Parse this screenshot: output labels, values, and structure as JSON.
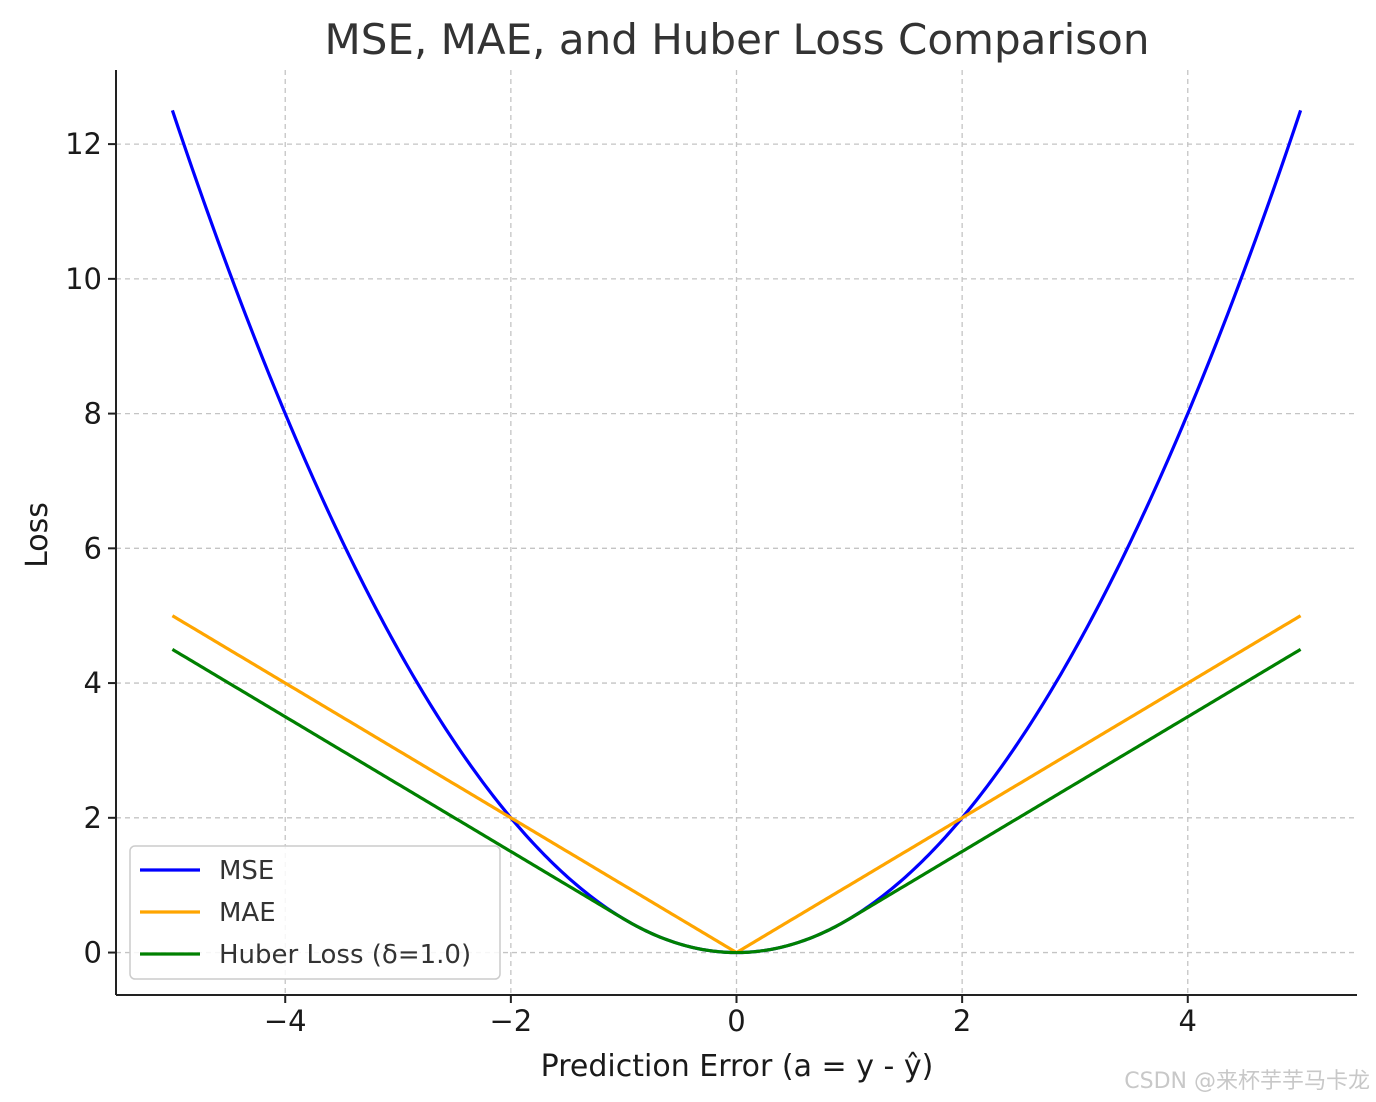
{
  "chart_data": {
    "type": "line",
    "title": "MSE, MAE, and Huber Loss Comparison",
    "xlabel": "Prediction Error (a = y - ŷ)",
    "ylabel": "Loss",
    "xlim": [
      -5.5,
      5.5
    ],
    "ylim": [
      -0.63,
      13.1
    ],
    "x_range": [
      -5,
      5
    ],
    "xticks": [
      -4,
      -2,
      0,
      2,
      4
    ],
    "xtick_labels": [
      "−4",
      "−2",
      "0",
      "2",
      "4"
    ],
    "yticks": [
      0,
      2,
      4,
      6,
      8,
      10,
      12
    ],
    "ytick_labels": [
      "0",
      "2",
      "4",
      "6",
      "8",
      "10",
      "12"
    ],
    "grid": true,
    "legend_position": "lower-left",
    "series": [
      {
        "name": "MSE",
        "color": "#0000ff",
        "formula": "0.5 * a^2",
        "points": [
          [
            -5,
            12.5
          ],
          [
            -4,
            8
          ],
          [
            -3,
            4.5
          ],
          [
            -2,
            2
          ],
          [
            -1,
            0.5
          ],
          [
            0,
            0
          ],
          [
            1,
            0.5
          ],
          [
            2,
            2
          ],
          [
            3,
            4.5
          ],
          [
            4,
            8
          ],
          [
            5,
            12.5
          ]
        ]
      },
      {
        "name": "MAE",
        "color": "#ffa500",
        "formula": "|a|",
        "points": [
          [
            -5,
            5
          ],
          [
            -4,
            4
          ],
          [
            -3,
            3
          ],
          [
            -2,
            2
          ],
          [
            -1,
            1
          ],
          [
            0,
            0
          ],
          [
            1,
            1
          ],
          [
            2,
            2
          ],
          [
            3,
            3
          ],
          [
            4,
            4
          ],
          [
            5,
            5
          ]
        ]
      },
      {
        "name": "Huber Loss (δ=1.0)",
        "color": "#008000",
        "formula": "huber(a, delta=1.0)",
        "delta": 1.0,
        "points": [
          [
            -5,
            4.5
          ],
          [
            -4,
            3.5
          ],
          [
            -3,
            2.5
          ],
          [
            -2,
            1.5
          ],
          [
            -1,
            0.5
          ],
          [
            0,
            0
          ],
          [
            1,
            0.5
          ],
          [
            2,
            1.5
          ],
          [
            3,
            2.5
          ],
          [
            4,
            3.5
          ],
          [
            5,
            4.5
          ]
        ]
      }
    ]
  },
  "watermark": "CSDN @来杯芋芋马卡龙"
}
